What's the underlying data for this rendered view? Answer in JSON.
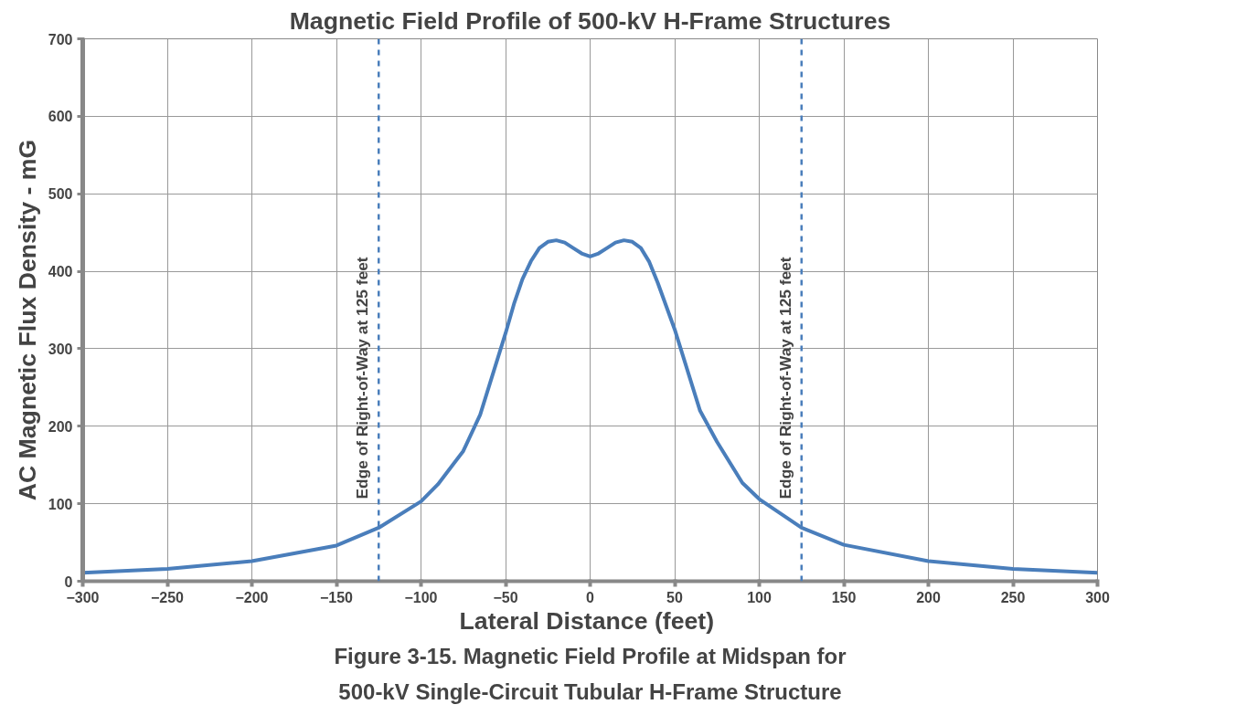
{
  "chart_data": {
    "type": "line",
    "title": "Magnetic Field Profile of 500-kV H-Frame Structures",
    "xlabel": "Lateral Distance  (feet)",
    "ylabel": "AC  Magnetic Flux Density  -  mG",
    "series": [
      {
        "color": "#4a7ebb",
        "x": [
          -300,
          -250,
          -200,
          -150,
          -125,
          -100,
          -90,
          -75,
          -65,
          -60,
          -55,
          -50,
          -45,
          -40,
          -35,
          -30,
          -25,
          -20,
          -15,
          -10,
          -5,
          0,
          5,
          10,
          15,
          20,
          25,
          30,
          35,
          40,
          45,
          50,
          55,
          60,
          65,
          75,
          90,
          100,
          125,
          150,
          200,
          250,
          300
        ],
        "values": [
          11,
          16,
          26,
          46,
          69,
          103,
          125,
          168,
          215,
          250,
          285,
          320,
          358,
          390,
          413,
          430,
          438,
          440,
          437,
          430,
          423,
          419,
          423,
          430,
          437,
          440,
          438,
          430,
          412,
          385,
          355,
          325,
          290,
          255,
          220,
          180,
          127,
          106,
          69,
          47,
          26,
          16,
          11
        ]
      }
    ],
    "xlim": [
      -300,
      300
    ],
    "xticks": [
      -300,
      -250,
      -200,
      -150,
      -100,
      -50,
      0,
      50,
      100,
      150,
      200,
      250,
      300
    ],
    "ylim": [
      0,
      700
    ],
    "yticks": [
      0,
      100,
      200,
      300,
      400,
      500,
      600,
      700
    ],
    "ref_lines": [
      {
        "axis": "x",
        "value": -125,
        "label": "Edge of Right-of-Way at 125 feet",
        "color": "#4a7ebb",
        "line_style": "dashed"
      },
      {
        "axis": "x",
        "value": 125,
        "label": "Edge of Right-of-Way at 125 feet",
        "color": "#4a7ebb",
        "line_style": "dashed"
      }
    ],
    "annotations": [
      "Figure 3-15. Magnetic Field Profile at Midspan for",
      "500-kV Single-Circuit Tubular H-Frame Structure"
    ],
    "grid": true,
    "marker": "none",
    "line_style": "solid"
  }
}
